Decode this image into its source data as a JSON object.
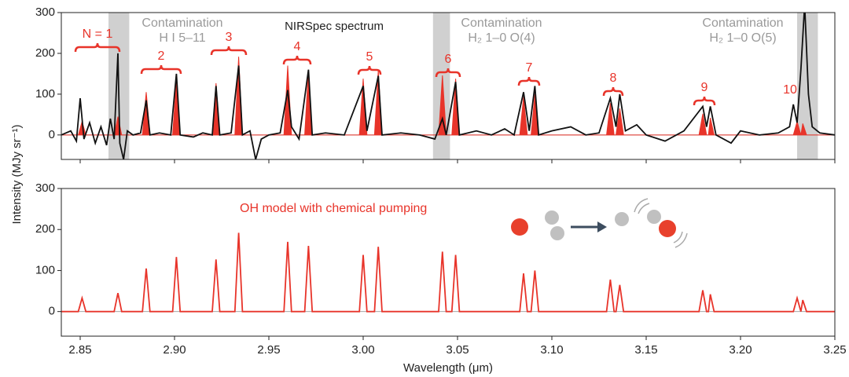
{
  "chart_data": [
    {
      "type": "line",
      "title": "NIRSpec spectrum",
      "xlim": [
        2.84,
        3.25
      ],
      "ylim": [
        -60,
        300
      ],
      "xticks": [
        2.85,
        2.9,
        2.95,
        3.0,
        3.05,
        3.1,
        3.15,
        3.2,
        3.25
      ],
      "yticks": [
        0,
        100,
        200,
        300
      ],
      "shaded_regions": [
        {
          "xlim": [
            2.865,
            2.876
          ],
          "label": "Contamination",
          "sublabel": "H I 5–11"
        },
        {
          "xlim": [
            3.037,
            3.046
          ],
          "label": "Contamination",
          "sublabel": "H₂ 1–0 O(4)"
        },
        {
          "xlim": [
            3.23,
            3.241
          ],
          "label": "Contamination",
          "sublabel": "H₂ 1–0 O(5)"
        }
      ],
      "annotations": [
        "N = 1",
        "2",
        "3",
        "4",
        "5",
        "6",
        "7",
        "8",
        "9",
        "10"
      ],
      "series": [
        {
          "color": "#e8342a",
          "fill": true,
          "x": [
            2.84,
            2.849,
            2.851,
            2.853,
            2.868,
            2.87,
            2.872,
            2.883,
            2.885,
            2.887,
            2.899,
            2.901,
            2.903,
            2.92,
            2.922,
            2.924,
            2.932,
            2.934,
            2.936,
            2.958,
            2.96,
            2.962,
            2.969,
            2.971,
            2.973,
            2.998,
            3.0,
            3.002,
            3.006,
            3.008,
            3.01,
            3.04,
            3.042,
            3.044,
            3.047,
            3.049,
            3.051,
            3.083,
            3.085,
            3.087,
            3.089,
            3.091,
            3.093,
            3.129,
            3.131,
            3.133,
            3.134,
            3.136,
            3.138,
            3.178,
            3.18,
            3.182,
            3.183,
            3.184,
            3.186,
            3.228,
            3.23,
            3.232,
            3.233,
            3.235,
            3.25
          ],
          "values": [
            0,
            0,
            33,
            0,
            0,
            45,
            0,
            0,
            105,
            0,
            0,
            133,
            0,
            0,
            127,
            0,
            0,
            192,
            0,
            0,
            170,
            0,
            0,
            160,
            0,
            0,
            138,
            0,
            0,
            158,
            0,
            0,
            146,
            0,
            0,
            138,
            0,
            0,
            93,
            0,
            0,
            100,
            0,
            0,
            78,
            0,
            0,
            65,
            0,
            0,
            52,
            0,
            0,
            42,
            0,
            0,
            33,
            0,
            28,
            0,
            0
          ]
        },
        {
          "name": "NIRSpec spectrum",
          "color": "#111111",
          "fill": false,
          "x": [
            2.84,
            2.845,
            2.848,
            2.85,
            2.852,
            2.855,
            2.858,
            2.861,
            2.864,
            2.866,
            2.868,
            2.87,
            2.871,
            2.873,
            2.875,
            2.878,
            2.882,
            2.885,
            2.887,
            2.892,
            2.898,
            2.901,
            2.903,
            2.91,
            2.915,
            2.92,
            2.922,
            2.924,
            2.93,
            2.934,
            2.936,
            2.94,
            2.943,
            2.946,
            2.95,
            2.956,
            2.96,
            2.962,
            2.966,
            2.971,
            2.973,
            2.98,
            2.99,
            3.0,
            3.002,
            3.008,
            3.01,
            3.02,
            3.03,
            3.038,
            3.042,
            3.044,
            3.049,
            3.051,
            3.06,
            3.068,
            3.075,
            3.08,
            3.085,
            3.088,
            3.091,
            3.093,
            3.1,
            3.11,
            3.118,
            3.125,
            3.131,
            3.134,
            3.136,
            3.139,
            3.145,
            3.15,
            3.16,
            3.17,
            3.18,
            3.182,
            3.184,
            3.187,
            3.195,
            3.2,
            3.21,
            3.22,
            3.226,
            3.228,
            3.23,
            3.232,
            3.234,
            3.236,
            3.238,
            3.242,
            3.25
          ],
          "values": [
            0,
            10,
            -15,
            90,
            -10,
            30,
            -20,
            20,
            -25,
            40,
            -10,
            200,
            -20,
            -60,
            10,
            0,
            5,
            85,
            0,
            5,
            0,
            150,
            0,
            -5,
            5,
            0,
            120,
            0,
            5,
            170,
            0,
            10,
            -60,
            -10,
            0,
            5,
            110,
            20,
            -10,
            160,
            0,
            5,
            0,
            120,
            10,
            145,
            0,
            5,
            0,
            -10,
            40,
            0,
            130,
            0,
            10,
            0,
            15,
            0,
            105,
            10,
            120,
            0,
            10,
            20,
            0,
            5,
            90,
            20,
            100,
            10,
            25,
            0,
            -15,
            10,
            70,
            20,
            70,
            0,
            -20,
            10,
            0,
            5,
            20,
            75,
            30,
            160,
            320,
            100,
            20,
            5,
            0
          ]
        }
      ]
    },
    {
      "type": "line",
      "xlim": [
        2.84,
        3.25
      ],
      "ylim": [
        -60,
        300
      ],
      "xticks": [
        {
          "value": 2.85,
          "label": "2.85"
        },
        {
          "value": 2.9,
          "label": "2.90"
        },
        {
          "value": 2.95,
          "label": "2.95"
        },
        {
          "value": 3.0,
          "label": "3.00"
        },
        {
          "value": 3.05,
          "label": "3.05"
        },
        {
          "value": 3.1,
          "label": "3.10"
        },
        {
          "value": 3.15,
          "label": "3.15"
        },
        {
          "value": 3.2,
          "label": "3.20"
        },
        {
          "value": 3.25,
          "label": "3.25"
        }
      ],
      "yticks": [
        0,
        100,
        200,
        300
      ],
      "xlabel": "Wavelength (μm)",
      "ylabel": "Intensity (MJy sr⁻¹)",
      "series": [
        {
          "name": "OH model with chemical pumping",
          "color": "#e8342a",
          "fill": false,
          "x": [
            2.84,
            2.849,
            2.851,
            2.853,
            2.868,
            2.87,
            2.872,
            2.883,
            2.885,
            2.887,
            2.899,
            2.901,
            2.903,
            2.92,
            2.922,
            2.924,
            2.932,
            2.934,
            2.936,
            2.958,
            2.96,
            2.962,
            2.969,
            2.971,
            2.973,
            2.998,
            3.0,
            3.002,
            3.006,
            3.008,
            3.01,
            3.04,
            3.042,
            3.044,
            3.047,
            3.049,
            3.051,
            3.083,
            3.085,
            3.087,
            3.089,
            3.091,
            3.093,
            3.129,
            3.131,
            3.133,
            3.134,
            3.136,
            3.138,
            3.178,
            3.18,
            3.182,
            3.183,
            3.184,
            3.186,
            3.228,
            3.23,
            3.232,
            3.233,
            3.235,
            3.25
          ],
          "values": [
            0,
            0,
            33,
            0,
            0,
            45,
            0,
            0,
            105,
            0,
            0,
            133,
            0,
            0,
            127,
            0,
            0,
            192,
            0,
            0,
            170,
            0,
            0,
            160,
            0,
            0,
            138,
            0,
            0,
            158,
            0,
            0,
            146,
            0,
            0,
            138,
            0,
            0,
            93,
            0,
            0,
            100,
            0,
            0,
            78,
            0,
            0,
            65,
            0,
            0,
            52,
            0,
            0,
            42,
            0,
            0,
            33,
            0,
            28,
            0,
            0
          ]
        }
      ]
    }
  ]
}
